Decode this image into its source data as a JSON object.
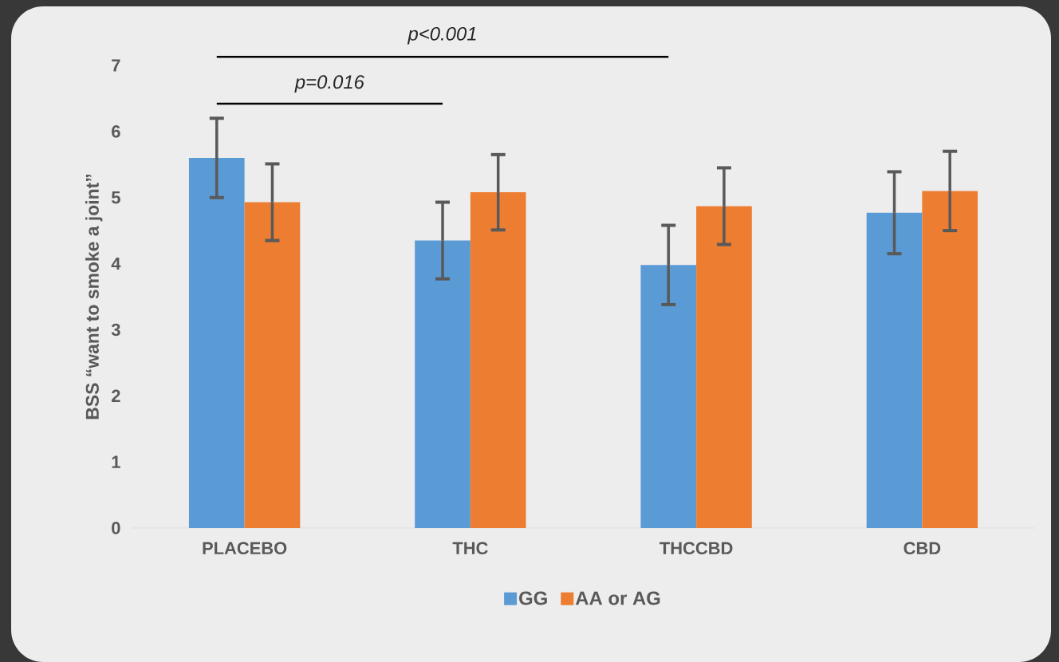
{
  "chart_data": {
    "type": "bar",
    "ylabel": "BSS “want to smoke a joint”",
    "categories": [
      "PLACEBO",
      "THC",
      "THCCBD",
      "CBD"
    ],
    "series": [
      {
        "name": "GG",
        "color": "#5b9bd5",
        "values": [
          5.6,
          4.35,
          3.98,
          4.77
        ],
        "errors": [
          0.6,
          0.58,
          0.6,
          0.62
        ]
      },
      {
        "name": "AA or AG",
        "color": "#ed7d31",
        "values": [
          4.93,
          5.08,
          4.87,
          5.1
        ],
        "errors": [
          0.58,
          0.57,
          0.58,
          0.6
        ]
      }
    ],
    "ylim": [
      0,
      7
    ],
    "yticks": [
      0,
      1,
      2,
      3,
      4,
      5,
      6,
      7
    ],
    "legend": "bottom",
    "annotations": [
      "p<0.001",
      "p=0.016"
    ]
  }
}
